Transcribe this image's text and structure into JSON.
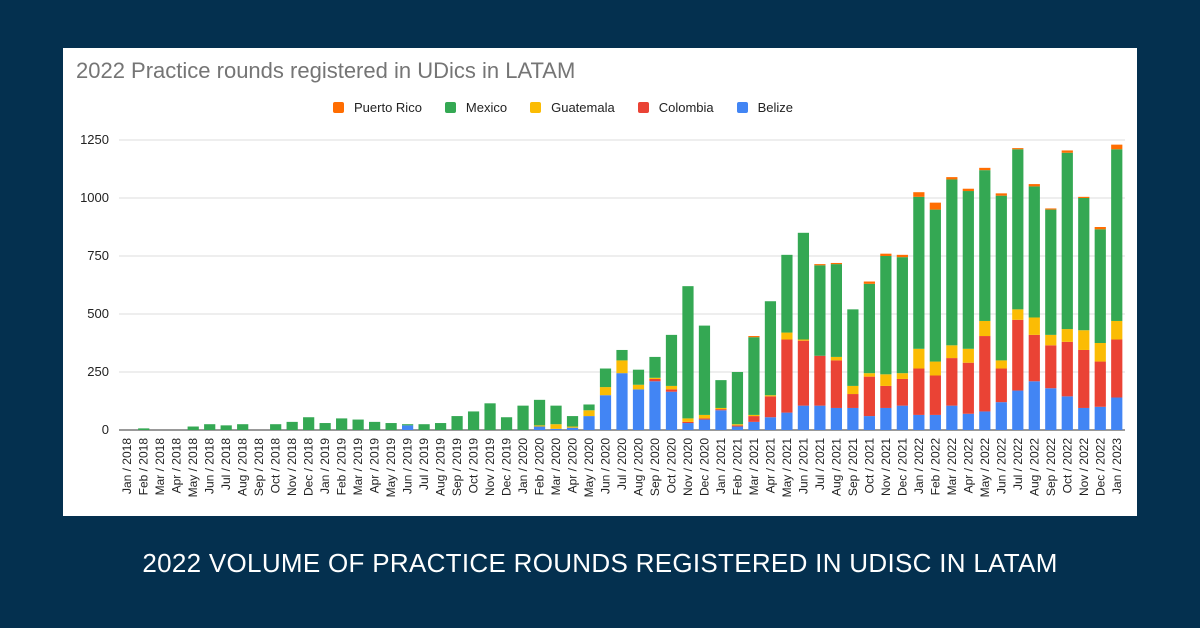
{
  "caption": "2022 VOLUME OF PRACTICE ROUNDS REGISTERED IN UDISC IN LATAM",
  "chart_data": {
    "type": "bar",
    "stacked": true,
    "title": "2022 Practice rounds registered in UDics in LATAM",
    "xlabel": "",
    "ylabel": "",
    "ylim": [
      0,
      1250
    ],
    "yticks": [
      0,
      250,
      500,
      750,
      1000,
      1250
    ],
    "legend_position": "top",
    "categories": [
      "Jan / 2018",
      "Feb / 2018",
      "Mar / 2018",
      "Apr / 2018",
      "May / 2018",
      "Jun / 2018",
      "Jul / 2018",
      "Aug / 2018",
      "Sep / 2018",
      "Oct / 2018",
      "Nov / 2018",
      "Dec / 2018",
      "Jan / 2019",
      "Feb / 2019",
      "Mar / 2019",
      "Apr / 2019",
      "May / 2019",
      "Jun / 2019",
      "Jul / 2019",
      "Aug / 2019",
      "Sep / 2019",
      "Oct / 2019",
      "Nov / 2019",
      "Dec / 2019",
      "Jan / 2020",
      "Feb / 2020",
      "Mar / 2020",
      "Apr / 2020",
      "May / 2020",
      "Jun / 2020",
      "Jul / 2020",
      "Aug / 2020",
      "Sep / 2020",
      "Oct / 2020",
      "Nov / 2020",
      "Dec / 2020",
      "Jan / 2021",
      "Feb / 2021",
      "Mar / 2021",
      "Apr / 2021",
      "May / 2021",
      "Jun / 2021",
      "Jul / 2021",
      "Aug / 2021",
      "Sep / 2021",
      "Oct / 2021",
      "Nov / 2021",
      "Dec / 2021",
      "Jan / 2022",
      "Feb / 2022",
      "Mar / 2022",
      "Apr / 2022",
      "May / 2022",
      "Jun / 2022",
      "Jul / 2022",
      "Aug / 2022",
      "Sep / 2022",
      "Oct / 2022",
      "Nov / 2022",
      "Dec / 2022",
      "Jan / 2023"
    ],
    "series": [
      {
        "name": "Belize",
        "color": "#4285f4",
        "values": [
          0,
          0,
          0,
          0,
          0,
          0,
          0,
          0,
          0,
          0,
          0,
          0,
          0,
          0,
          0,
          0,
          0,
          20,
          0,
          0,
          0,
          0,
          0,
          0,
          0,
          15,
          5,
          10,
          60,
          150,
          245,
          175,
          210,
          165,
          30,
          45,
          85,
          15,
          35,
          55,
          75,
          105,
          105,
          95,
          95,
          60,
          95,
          105,
          65,
          65,
          105,
          70,
          80,
          120,
          170,
          210,
          180,
          145,
          95,
          100,
          140
        ]
      },
      {
        "name": "Colombia",
        "color": "#ea4335",
        "values": [
          0,
          0,
          0,
          0,
          0,
          0,
          0,
          0,
          0,
          0,
          0,
          0,
          0,
          0,
          0,
          0,
          0,
          0,
          0,
          0,
          0,
          0,
          0,
          0,
          0,
          0,
          0,
          0,
          0,
          0,
          0,
          0,
          10,
          10,
          5,
          5,
          5,
          5,
          25,
          90,
          315,
          280,
          215,
          205,
          60,
          170,
          95,
          115,
          200,
          170,
          205,
          220,
          325,
          145,
          305,
          200,
          185,
          235,
          250,
          195,
          250
        ]
      },
      {
        "name": "Guatemala",
        "color": "#fbbc04",
        "values": [
          0,
          0,
          0,
          0,
          0,
          0,
          0,
          0,
          0,
          0,
          0,
          0,
          0,
          0,
          0,
          0,
          0,
          0,
          0,
          0,
          0,
          0,
          0,
          0,
          0,
          5,
          20,
          5,
          25,
          35,
          55,
          20,
          5,
          15,
          15,
          15,
          5,
          5,
          5,
          5,
          30,
          5,
          0,
          15,
          35,
          15,
          50,
          25,
          85,
          60,
          55,
          60,
          65,
          35,
          45,
          75,
          45,
          55,
          85,
          80,
          80
        ]
      },
      {
        "name": "Mexico",
        "color": "#34a853",
        "values": [
          0,
          7,
          0,
          0,
          15,
          25,
          20,
          25,
          0,
          25,
          35,
          55,
          30,
          50,
          45,
          35,
          30,
          5,
          25,
          30,
          60,
          80,
          115,
          55,
          105,
          110,
          80,
          45,
          25,
          80,
          45,
          65,
          90,
          220,
          570,
          385,
          120,
          225,
          335,
          405,
          335,
          460,
          390,
          400,
          330,
          385,
          510,
          500,
          655,
          655,
          715,
          680,
          650,
          710,
          690,
          565,
          540,
          760,
          570,
          490,
          740
        ]
      },
      {
        "name": "Puerto Rico",
        "color": "#ff6d01",
        "values": [
          0,
          0,
          0,
          0,
          0,
          0,
          0,
          0,
          0,
          0,
          0,
          0,
          0,
          0,
          0,
          0,
          0,
          0,
          0,
          0,
          0,
          0,
          0,
          0,
          0,
          0,
          0,
          0,
          0,
          0,
          0,
          0,
          0,
          0,
          0,
          0,
          0,
          0,
          5,
          0,
          0,
          0,
          5,
          5,
          0,
          10,
          10,
          10,
          20,
          30,
          10,
          10,
          10,
          10,
          5,
          10,
          5,
          10,
          5,
          10,
          20
        ]
      }
    ],
    "legend_order": [
      "Puerto Rico",
      "Mexico",
      "Guatemala",
      "Colombia",
      "Belize"
    ]
  }
}
